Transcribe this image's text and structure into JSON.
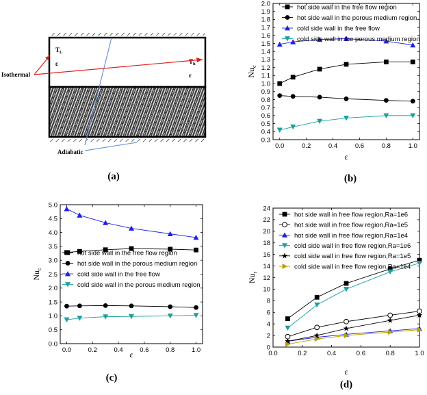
{
  "panels": [
    {
      "id": "a",
      "caption": "(a)"
    },
    {
      "id": "b",
      "caption": "(b)"
    },
    {
      "id": "c",
      "caption": "(c)"
    },
    {
      "id": "d",
      "caption": "(d)"
    }
  ],
  "schematic": {
    "labels": {
      "t_left": "T",
      "t_left_sub": "L",
      "t_right": "T",
      "t_right_sub": "h",
      "eps_left": "ε",
      "eps_right": "ε",
      "isothermal": "Isothermal",
      "adiabatic": "Adiabatic"
    },
    "colors": {
      "isothermal_arrow": "#e0201a",
      "adiabatic_line": "#5b8fd6"
    }
  },
  "chart_data": [
    {
      "id": "b",
      "type": "line",
      "title": "",
      "xlabel": "ε",
      "ylabel": "Nu",
      "ylabel_sub": "c",
      "x": [
        0,
        0.1,
        0.3,
        0.5,
        0.8,
        1.0
      ],
      "xlim": [
        -0.05,
        1.05
      ],
      "ylim": [
        0.3,
        2.0
      ],
      "xticks": [
        0.0,
        0.2,
        0.4,
        0.6,
        0.8,
        1.0
      ],
      "xtick_labels": [
        "0.0",
        "0.2",
        "0.4",
        "0.6",
        "0.8",
        "1.0"
      ],
      "yticks": [
        0.3,
        0.4,
        0.5,
        0.6,
        0.7,
        0.8,
        0.9,
        1.0,
        1.1,
        1.2,
        1.3,
        1.4,
        1.5,
        1.6,
        1.7,
        1.8,
        1.9,
        2.0
      ],
      "ytick_labels": [
        "0.3",
        "0.4",
        "0.5",
        "0.6",
        "0.7",
        "0.8",
        "0.9",
        "1.0",
        "1.1",
        "1.2",
        "1.3",
        "1.4",
        "1.5",
        "1.6",
        "1.7",
        "1.8",
        "1.9",
        "2.0"
      ],
      "legend_position": "top-right",
      "series": [
        {
          "name": "hot side wall in the free flow region",
          "marker": "square",
          "color": "#000000",
          "values": [
            1.0,
            1.08,
            1.18,
            1.24,
            1.27,
            1.27
          ]
        },
        {
          "name": "hot side wall in the porous medium region",
          "marker": "circle",
          "color": "#000000",
          "values": [
            0.85,
            0.84,
            0.83,
            0.81,
            0.79,
            0.78
          ]
        },
        {
          "name": "cold side wall in the free flow",
          "marker": "triangle-up",
          "color": "#1f1fe6",
          "values": [
            1.49,
            1.52,
            1.55,
            1.56,
            1.53,
            1.48
          ]
        },
        {
          "name": "cold side wall in the porous medium region",
          "marker": "triangle-down",
          "color": "#1aa0a0",
          "values": [
            0.42,
            0.46,
            0.53,
            0.57,
            0.6,
            0.6
          ]
        }
      ]
    },
    {
      "id": "c",
      "type": "line",
      "title": "",
      "xlabel": "ε",
      "ylabel": "Nu",
      "ylabel_sub": "c",
      "x": [
        0,
        0.1,
        0.3,
        0.5,
        0.8,
        1.0
      ],
      "xlim": [
        -0.05,
        1.05
      ],
      "ylim": [
        0.0,
        5.0
      ],
      "xticks": [
        0.0,
        0.2,
        0.4,
        0.6,
        0.8,
        1.0
      ],
      "xtick_labels": [
        "0.0",
        "0.2",
        "0.4",
        "0.6",
        "0.8",
        "1.0"
      ],
      "yticks": [
        0.0,
        0.5,
        1.0,
        1.5,
        2.0,
        2.5,
        3.0,
        3.5,
        4.0,
        4.5,
        5.0
      ],
      "ytick_labels": [
        "0.0",
        "0.5",
        "1.0",
        "1.5",
        "2.0",
        "2.5",
        "3.0",
        "3.5",
        "4.0",
        "4.5",
        "5.0"
      ],
      "legend_position": "center",
      "series": [
        {
          "name": "hot side wall in the free flow region",
          "marker": "square",
          "color": "#000000",
          "values": [
            3.28,
            3.32,
            3.38,
            3.42,
            3.4,
            3.37
          ]
        },
        {
          "name": "hot side wall in the porous medium region",
          "marker": "circle",
          "color": "#000000",
          "values": [
            1.35,
            1.36,
            1.37,
            1.36,
            1.33,
            1.3
          ]
        },
        {
          "name": "cold side wall in the free flow",
          "marker": "triangle-up",
          "color": "#1f1fe6",
          "values": [
            4.85,
            4.62,
            4.35,
            4.15,
            3.95,
            3.82
          ]
        },
        {
          "name": "cold side wall in the porous medium region",
          "marker": "triangle-down",
          "color": "#1aa0a0",
          "values": [
            0.86,
            0.92,
            0.97,
            0.98,
            1.0,
            1.02
          ]
        }
      ]
    },
    {
      "id": "d",
      "type": "line",
      "title": "",
      "xlabel": "ε",
      "ylabel": "Nu",
      "ylabel_sub": "r",
      "x": [
        0.1,
        0.3,
        0.5,
        0.8,
        1.0
      ],
      "xlim": [
        0.0,
        1.0
      ],
      "ylim": [
        0,
        24
      ],
      "xticks": [
        0.0,
        0.2,
        0.4,
        0.6,
        0.8,
        1.0
      ],
      "xtick_labels": [
        "0.0",
        "0.2",
        "0.4",
        "0.6",
        "0.8",
        "1.0"
      ],
      "yticks": [
        0,
        2,
        4,
        6,
        8,
        10,
        12,
        14,
        16,
        18,
        20,
        22,
        24
      ],
      "ytick_labels": [
        "0",
        "2",
        "4",
        "6",
        "8",
        "10",
        "12",
        "14",
        "16",
        "18",
        "20",
        "22",
        "24"
      ],
      "legend_position": "top-left",
      "series": [
        {
          "name": "hot side wall in free flow region,Ra=1e6",
          "marker": "square",
          "color": "#000000",
          "values": [
            4.9,
            8.6,
            11.0,
            13.5,
            15.0
          ]
        },
        {
          "name": "hot side wall in free flow region,Ra=1e5",
          "marker": "circle-open",
          "color": "#000000",
          "values": [
            1.8,
            3.4,
            4.4,
            5.5,
            6.2
          ]
        },
        {
          "name": "hot side wall in free flow region,Ra=1e4",
          "marker": "triangle-up",
          "color": "#1f1fe6",
          "values": [
            1.0,
            1.7,
            2.2,
            2.8,
            3.2
          ]
        },
        {
          "name": "cold side wall in free flow region,Ra=1e6",
          "marker": "triangle-down",
          "color": "#1aa0a0",
          "values": [
            3.3,
            7.3,
            10.0,
            13.0,
            14.5
          ]
        },
        {
          "name": "cold side wall in free flow region,Ra=1e5",
          "marker": "star",
          "color": "#000000",
          "values": [
            1.0,
            2.0,
            3.2,
            4.6,
            5.5
          ]
        },
        {
          "name": "cold side wall in free flow region,Ra=1e4",
          "marker": "triangle-right",
          "color": "#b8a000",
          "values": [
            0.5,
            1.4,
            2.0,
            2.6,
            3.0
          ]
        }
      ]
    }
  ]
}
